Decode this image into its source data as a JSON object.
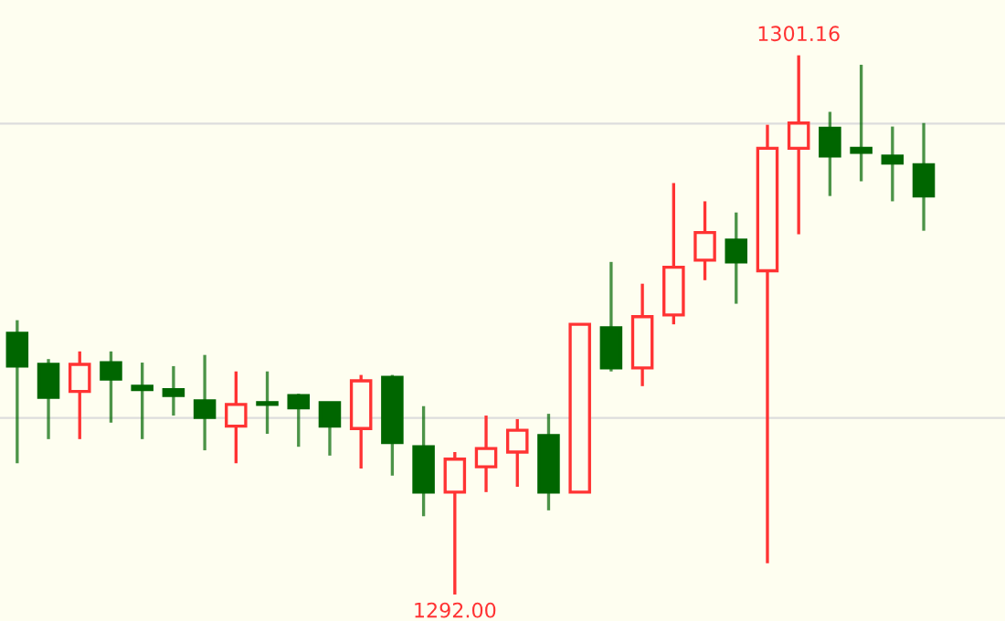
{
  "chart_data": {
    "type": "candlestick",
    "categories": [
      null,
      null,
      null,
      null,
      null,
      null,
      null,
      null,
      null,
      null,
      null,
      null,
      null,
      null,
      null,
      null,
      null,
      null,
      null,
      null,
      null,
      null,
      null,
      null,
      null,
      null,
      null,
      null,
      null,
      null
    ],
    "ohlc": [
      [
        1296.44,
        1296.66,
        1294.23,
        1295.88
      ],
      [
        1295.91,
        1296.0,
        1294.64,
        1295.35
      ],
      [
        1295.45,
        1296.13,
        1294.64,
        1295.91
      ],
      [
        1295.94,
        1296.13,
        1294.92,
        1295.66
      ],
      [
        1295.54,
        1295.94,
        1294.64,
        1295.48
      ],
      [
        1295.48,
        1295.88,
        1295.04,
        1295.38
      ],
      [
        1295.29,
        1296.07,
        1294.45,
        1295.01
      ],
      [
        1294.86,
        1295.79,
        1294.23,
        1295.23
      ],
      [
        1295.26,
        1295.79,
        1294.73,
        1295.23
      ],
      [
        1295.38,
        1295.41,
        1294.51,
        1295.17
      ],
      [
        1295.26,
        1295.26,
        1294.36,
        1294.86
      ],
      [
        1294.82,
        1295.73,
        1294.14,
        1295.63
      ],
      [
        1295.69,
        1295.73,
        1294.02,
        1294.58
      ],
      [
        1294.51,
        1295.2,
        1293.33,
        1293.74
      ],
      [
        1293.74,
        1294.42,
        1292.0,
        1294.3
      ],
      [
        1294.17,
        1295.04,
        1293.74,
        1294.48
      ],
      [
        1294.42,
        1294.98,
        1293.83,
        1294.79
      ],
      [
        1294.7,
        1295.07,
        1293.43,
        1293.74
      ],
      [
        1293.74,
        1296.59,
        1293.74,
        1296.59
      ],
      [
        1296.53,
        1297.65,
        1295.79,
        1295.85
      ],
      [
        1295.85,
        1297.28,
        1295.54,
        1296.72
      ],
      [
        1296.75,
        1298.99,
        1296.59,
        1297.56
      ],
      [
        1297.68,
        1298.68,
        1297.34,
        1298.15
      ],
      [
        1298.02,
        1298.49,
        1296.94,
        1297.65
      ],
      [
        1297.5,
        1299.98,
        1292.53,
        1299.58
      ],
      [
        1299.58,
        1301.16,
        1298.12,
        1300.01
      ],
      [
        1299.92,
        1300.2,
        1298.77,
        1299.45
      ],
      [
        1299.58,
        1301.0,
        1299.02,
        1299.51
      ],
      [
        1299.45,
        1299.95,
        1298.68,
        1299.33
      ],
      [
        1299.3,
        1300.01,
        1298.18,
        1298.77
      ]
    ],
    "colors": [
      "#006600",
      "#006600",
      "#ff3333",
      "#006600",
      "#006600",
      "#006600",
      "#006600",
      "#ff3333",
      "#006600",
      "#006600",
      "#006600",
      "#ff3333",
      "#006600",
      "#006600",
      "#ff3333",
      "#ff3333",
      "#ff3333",
      "#006600",
      "#ff3333",
      "#006600",
      "#ff3333",
      "#ff3333",
      "#ff3333",
      "#006600",
      "#ff3333",
      "#ff3333",
      "#006600",
      "#006600",
      "#006600",
      "#006600"
    ],
    "ylim": [
      1291.55,
      1302.1
    ],
    "yticks": [
      {
        "value": 1295,
        "label": null
      },
      {
        "value": 1300,
        "label": null
      }
    ],
    "grid": "y",
    "annotations": [
      {
        "text": "1301.16",
        "y": 1301.16
      },
      {
        "text": "1292.00",
        "y": 1292.0
      }
    ]
  }
}
